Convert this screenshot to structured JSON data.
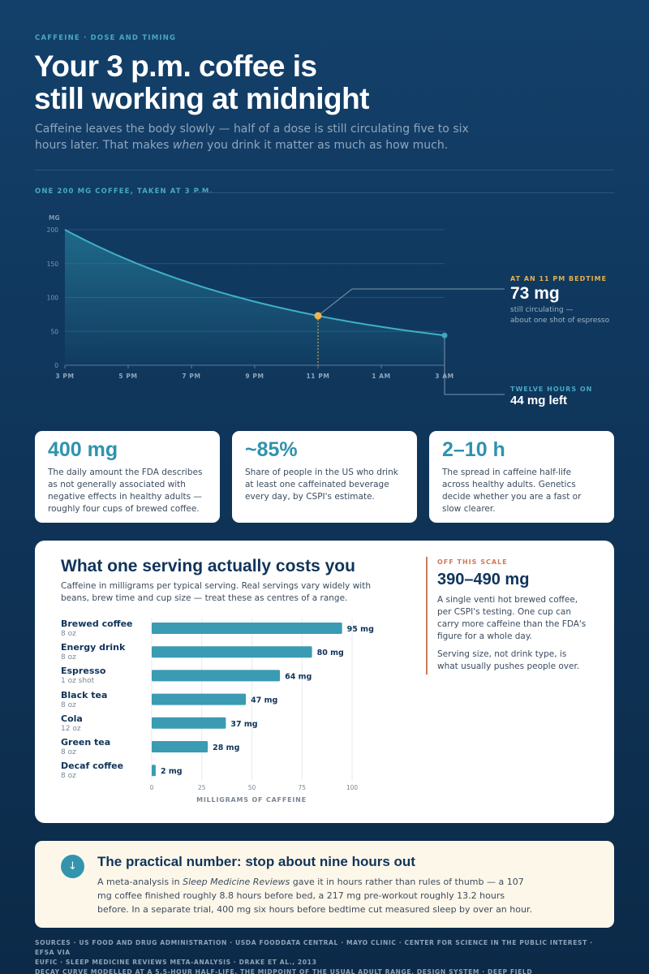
{
  "header": {
    "eyebrow": "CAFFEINE · DOSE AND TIMING",
    "title_line1": "Your 3 p.m. coffee is",
    "title_line2": "still working at midnight",
    "subtitle_part1": "Caffeine leaves the body slowly — half of a dose is still circulating five to six hours later. That makes ",
    "subtitle_em": "when",
    "subtitle_part2": " you drink it matter as much as how much."
  },
  "chart_section": {
    "eyebrow": "ONE 200 MG COFFEE, TAKEN AT 3 P.M."
  },
  "callouts": {
    "bedtime": {
      "label": "AT AN 11 PM BEDTIME",
      "value": "73 mg",
      "note_line1": "still circulating —",
      "note_line2": "about one shot of espresso"
    },
    "twelve": {
      "label": "TWELVE HOURS ON",
      "value": "44 mg left"
    }
  },
  "chart_data": [
    {
      "type": "area",
      "title": "ONE 200 MG COFFEE, TAKEN AT 3 P.M.",
      "ylabel": "MG",
      "xlabel": "",
      "ylim": [
        0,
        200
      ],
      "yticks": [
        0,
        50,
        100,
        150,
        200
      ],
      "xlim": [
        0,
        12
      ],
      "xticks": [
        {
          "x": 0,
          "label": "3 PM"
        },
        {
          "x": 2,
          "label": "5 PM"
        },
        {
          "x": 4,
          "label": "7 PM"
        },
        {
          "x": 6,
          "label": "9 PM"
        },
        {
          "x": 8,
          "label": "11 PM"
        },
        {
          "x": 10,
          "label": "1 AM"
        },
        {
          "x": 12,
          "label": "3 AM"
        }
      ],
      "series": [
        {
          "half_life_hours": 5.5,
          "x": [
            0,
            1,
            2,
            3,
            4,
            5,
            6,
            7,
            8,
            9,
            10,
            11,
            12
          ],
          "values": [
            200,
            176,
            155,
            137,
            121,
            107,
            94,
            83,
            73,
            64,
            57,
            50,
            44
          ]
        }
      ],
      "highlights": [
        {
          "x": 8,
          "value": 73,
          "color": "#f0b54a"
        },
        {
          "x": 12,
          "value": 44,
          "color": "#3fa7c0"
        }
      ],
      "grid": true
    },
    {
      "type": "bar",
      "orientation": "horizontal",
      "title": "What one serving actually costs you",
      "xlabel": "MILLIGRAMS OF CAFFEINE",
      "xlim": [
        0,
        100
      ],
      "xticks": [
        0,
        25,
        50,
        75,
        100
      ],
      "categories": [
        "Brewed coffee",
        "Energy drink",
        "Espresso",
        "Black tea",
        "Cola",
        "Green tea",
        "Decaf coffee"
      ],
      "sizes": [
        "8 oz",
        "8 oz",
        "1 oz shot",
        "8 oz",
        "12 oz",
        "8 oz",
        "8 oz"
      ],
      "values": [
        95,
        80,
        64,
        47,
        37,
        28,
        2
      ],
      "value_labels": [
        "95 mg",
        "80 mg",
        "64 mg",
        "47 mg",
        "37 mg",
        "28 mg",
        "2 mg"
      ],
      "color": "#3a9bb3",
      "grid": true
    }
  ],
  "stats": [
    {
      "value": "400 mg",
      "desc": "The daily amount the FDA describes as not generally associated with negative effects in healthy adults — roughly four cups of brewed coffee."
    },
    {
      "value": "~85%",
      "desc": "Share of people in the US who drink at least one caffeinated beverage every day, by CSPI's estimate."
    },
    {
      "value": "2–10 h",
      "desc": "The spread in caffeine half-life across healthy adults. Genetics decide whether you are a fast or slow clearer."
    }
  ],
  "serving": {
    "title": "What one serving actually costs you",
    "subtitle": "Caffeine in milligrams per typical serving. Real servings vary widely with beans, brew time and cup size — treat these as centres of a range.",
    "offscale": {
      "label": "OFF THIS SCALE",
      "value": "390–490 mg",
      "desc": "A single venti hot brewed coffee, per CSPI's testing. One cup can carry more caffeine than the FDA's figure for a whole day.",
      "note": "Serving size, not drink type, is what usually pushes people over."
    }
  },
  "practical": {
    "icon": "↓",
    "title": "The practical number: stop about nine hours out",
    "body_part1": "A meta-analysis in ",
    "body_em": "Sleep Medicine Reviews",
    "body_part2": " gave it in hours rather than rules of thumb — a 107 mg coffee finished roughly 8.8 hours before bed, a 217 mg pre-workout roughly 13.2 hours before. In a separate trial, 400 mg six hours before bedtime cut measured sleep by over an hour."
  },
  "sources": {
    "line1": "SOURCES · US FOOD AND DRUG ADMINISTRATION · USDA FOODDATA CENTRAL · MAYO CLINIC · CENTER FOR SCIENCE IN THE PUBLIC INTEREST · EFSA VIA",
    "line2": "EUFIC · SLEEP MEDICINE REVIEWS META-ANALYSIS · DRAKE ET AL., 2013",
    "line3": "DECAY CURVE MODELLED AT A 5.5-HOUR HALF-LIFE, THE MIDPOINT OF THE USUAL ADULT RANGE. DESIGN SYSTEM · DEEP FIELD"
  },
  "colors": {
    "background": "#10385e",
    "accent_teal": "#3a9bb3",
    "accent_gold": "#f0b54a",
    "accent_coral": "#cf7a5a",
    "card": "#ffffff",
    "practical_bg": "#fdf7ea"
  }
}
